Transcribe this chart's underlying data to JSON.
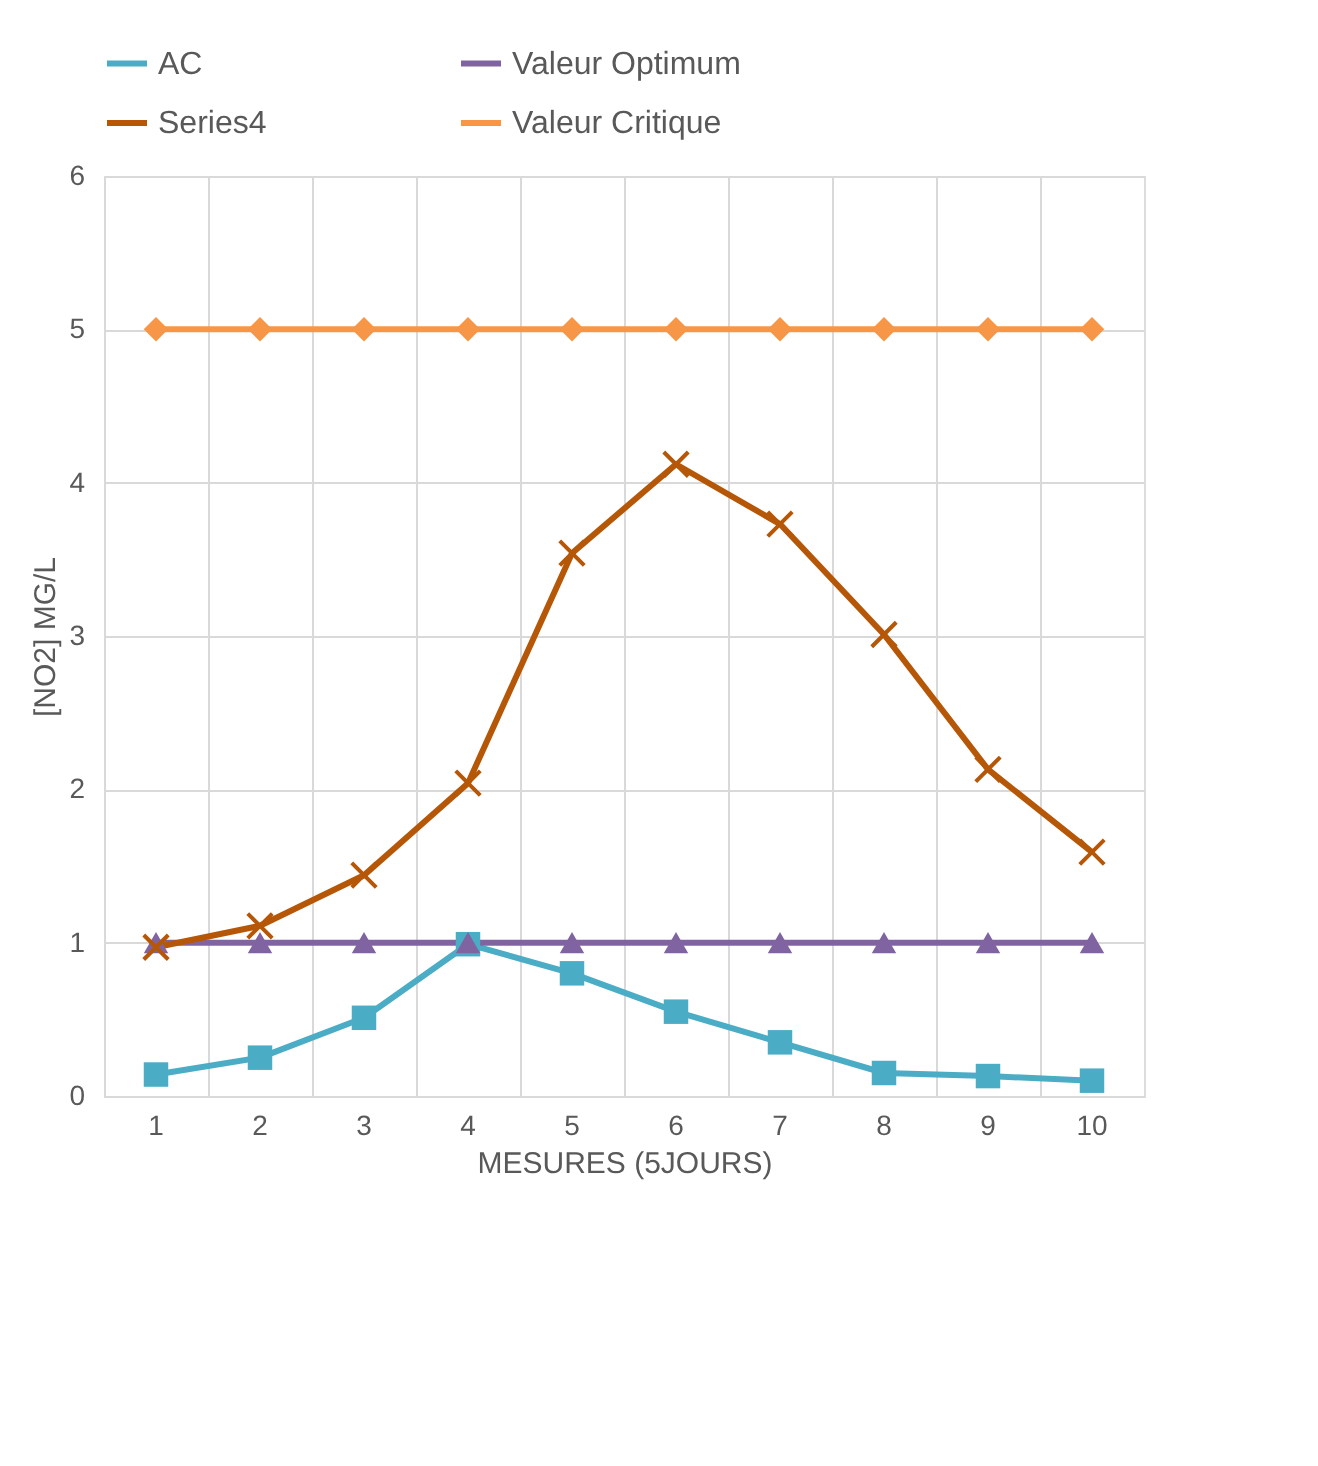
{
  "chart_data": {
    "type": "line",
    "xlabel": "MESURES (5JOURS)",
    "ylabel": "[NO2] MG/L",
    "categories": [
      "1",
      "2",
      "3",
      "4",
      "5",
      "6",
      "7",
      "8",
      "9",
      "10"
    ],
    "series": [
      {
        "name": "AC",
        "color": "#4bacc6",
        "marker": "square",
        "values": [
          0.14,
          0.25,
          0.51,
          0.99,
          0.8,
          0.55,
          0.35,
          0.15,
          0.13,
          0.1
        ]
      },
      {
        "name": "Valeur Optimum",
        "color": "#8064a2",
        "marker": "triangle",
        "values": [
          1,
          1,
          1,
          1,
          1,
          1,
          1,
          1,
          1,
          1
        ]
      },
      {
        "name": "Series4",
        "color": "#b65708",
        "marker": "cross",
        "values": [
          0.97,
          1.11,
          1.44,
          2.04,
          3.54,
          4.12,
          3.73,
          3.01,
          2.13,
          1.59
        ]
      },
      {
        "name": "Valeur Critique",
        "color": "#f79646",
        "marker": "diamond",
        "values": [
          5,
          5,
          5,
          5,
          5,
          5,
          5,
          5,
          5,
          5
        ]
      }
    ],
    "ylim": [
      0,
      6
    ],
    "yticks": [
      0,
      1,
      2,
      3,
      4,
      5,
      6
    ],
    "grid": true,
    "legend": "top",
    "line_style": "solid"
  }
}
